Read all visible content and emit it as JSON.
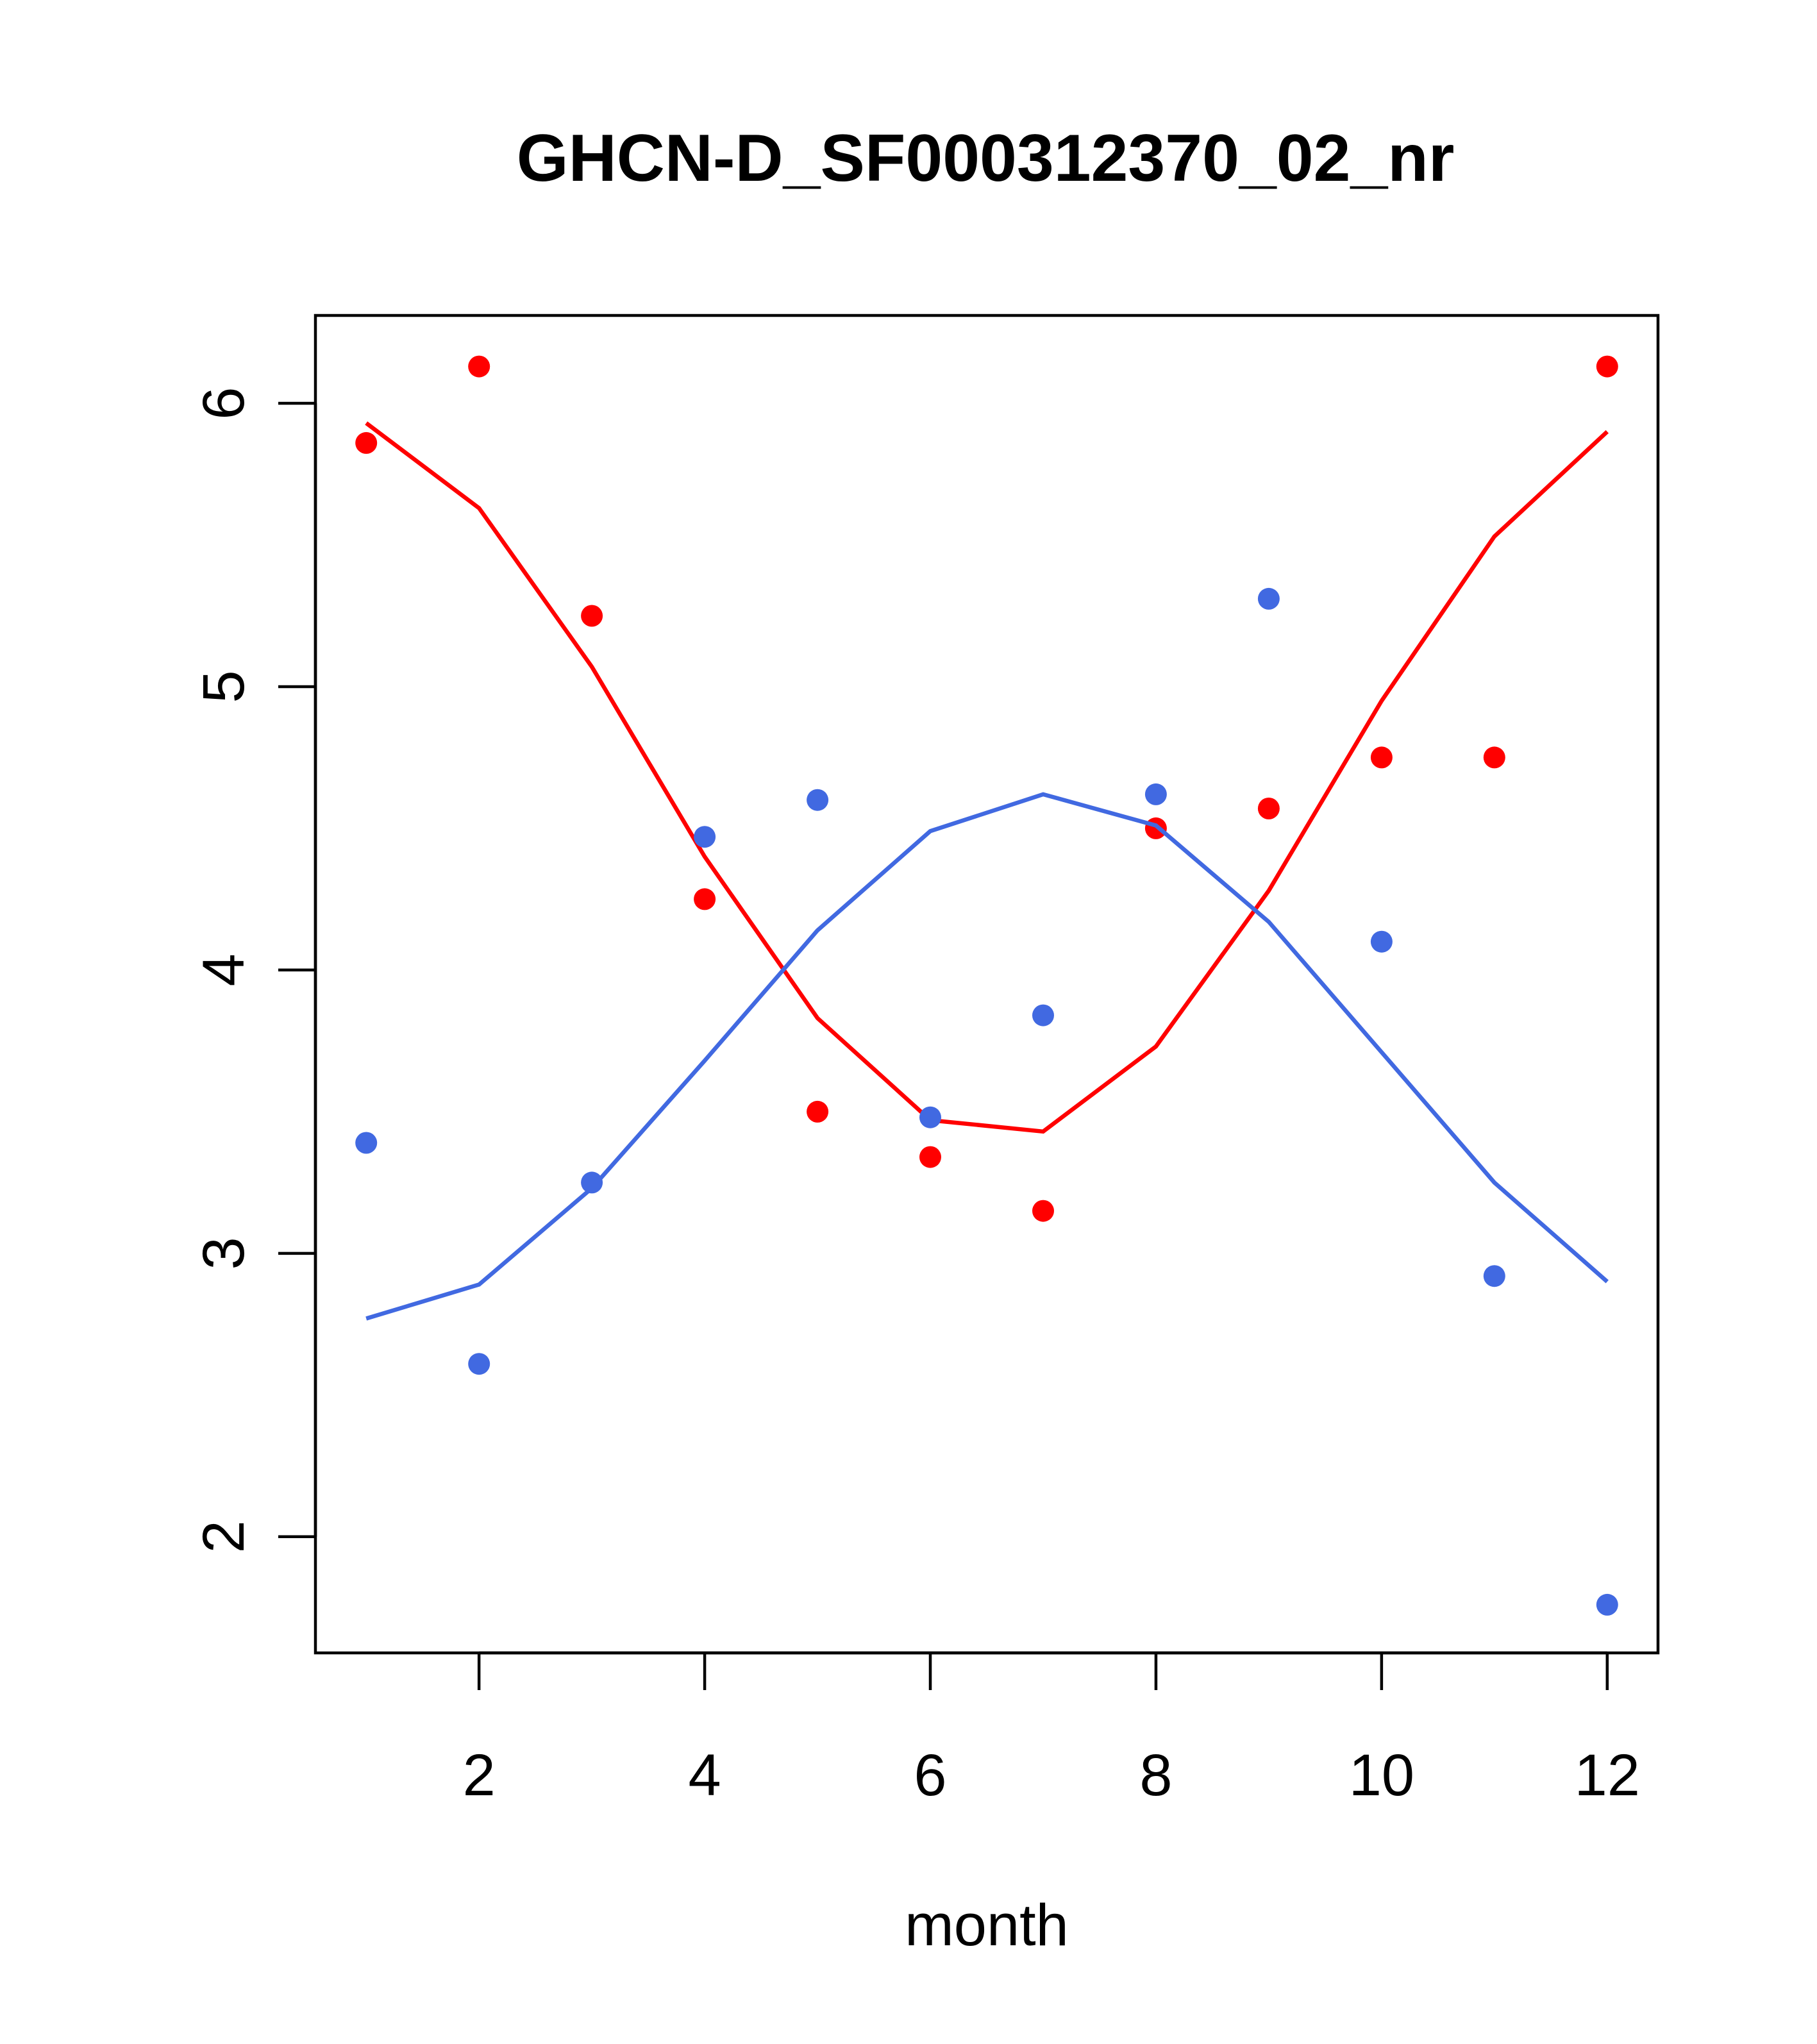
{
  "chart_data": {
    "type": "scatter",
    "title": "GHCN-D_SF000312370_02_nr",
    "xlabel": "month",
    "ylabel": "",
    "xlim": [
      0.55,
      12.45
    ],
    "ylim": [
      1.59,
      6.31
    ],
    "x_ticks": [
      2,
      4,
      6,
      8,
      10,
      12
    ],
    "y_ticks": [
      2,
      3,
      4,
      5,
      6
    ],
    "x_tick_labels": [
      "2",
      "4",
      "6",
      "8",
      "10",
      "12"
    ],
    "y_tick_labels": [
      "2",
      "3",
      "4",
      "5",
      "6"
    ],
    "grid": false,
    "legend": "none",
    "series": [
      {
        "color": "#ff0000",
        "x": [
          1,
          2,
          3,
          4,
          5,
          6,
          7,
          8,
          9,
          10,
          11,
          12
        ],
        "points": [
          5.86,
          6.13,
          5.25,
          4.25,
          3.5,
          3.34,
          3.15,
          4.5,
          4.57,
          4.75,
          4.75,
          6.13
        ],
        "fit": [
          5.93,
          5.63,
          5.07,
          4.4,
          3.83,
          3.47,
          3.43,
          3.73,
          4.28,
          4.95,
          5.53,
          5.9
        ]
      },
      {
        "color": "#4169e1",
        "x": [
          1,
          2,
          3,
          4,
          5,
          6,
          7,
          8,
          9,
          10,
          11,
          12
        ],
        "points": [
          3.39,
          2.61,
          3.25,
          4.47,
          4.6,
          3.48,
          3.84,
          4.62,
          5.31,
          4.1,
          2.92,
          1.76
        ],
        "fit": [
          2.77,
          2.89,
          3.23,
          3.68,
          4.14,
          4.49,
          4.62,
          4.51,
          4.17,
          3.71,
          3.25,
          2.9
        ]
      }
    ]
  }
}
